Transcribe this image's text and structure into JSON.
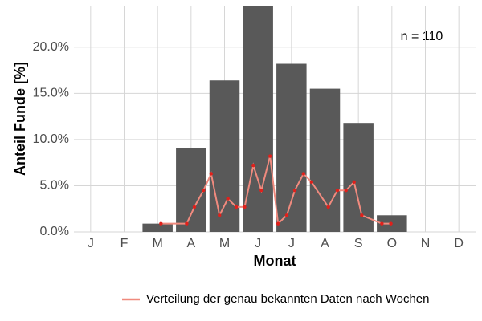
{
  "chart_data": {
    "type": "bar",
    "y_label": "Anteil Funde [%]",
    "x_label": "Monat",
    "annotation": "n = 110",
    "categories": [
      "J",
      "F",
      "M",
      "A",
      "M",
      "J",
      "J",
      "A",
      "S",
      "O",
      "N",
      "D"
    ],
    "values": [
      0,
      0,
      0.9,
      9.1,
      16.4,
      24.5,
      18.2,
      15.5,
      11.8,
      1.8,
      0,
      0
    ],
    "color": "#595959",
    "ylim": [
      0,
      24.5
    ],
    "yticks": [
      {
        "value": 0,
        "label": "0.0%"
      },
      {
        "value": 5,
        "label": "5.0%"
      },
      {
        "value": 10,
        "label": "10.0%"
      },
      {
        "value": 15,
        "label": "15.0%"
      },
      {
        "value": 20,
        "label": "20.0%"
      }
    ],
    "xlim": [
      0.5,
      12.5
    ],
    "grid": true,
    "legend": "bottom",
    "line_series": {
      "name": "Verteilung der genau bekannten Daten nach Wochen",
      "color": "#f08a7e",
      "point_color": "#e0201b",
      "x": [
        3.1,
        3.87,
        4.1,
        4.37,
        4.6,
        4.85,
        5.1,
        5.35,
        5.6,
        5.86,
        6.1,
        6.36,
        6.6,
        6.86,
        7.1,
        7.36,
        7.6,
        8.1,
        8.37,
        8.63,
        8.87,
        9.1,
        9.7,
        9.97
      ],
      "values": [
        0.9,
        0.9,
        2.7,
        4.5,
        6.3,
        1.8,
        3.6,
        2.7,
        2.7,
        7.2,
        4.5,
        8.2,
        0.9,
        1.8,
        4.5,
        6.3,
        5.4,
        2.7,
        4.5,
        4.5,
        5.4,
        1.8,
        0.9,
        0.9
      ]
    }
  }
}
